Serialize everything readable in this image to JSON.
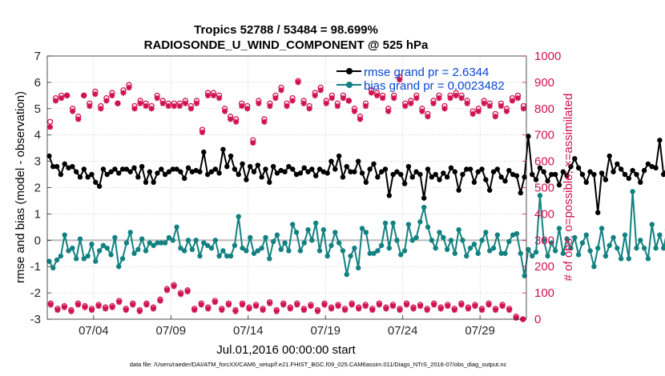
{
  "chart_data": {
    "type": "line",
    "title": "Tropics 52788 / 53484 = 98.699%",
    "subtitle": "RADIOSONDE_U_WIND_COMPONENT @ 525 hPa",
    "xlabel": "Jul.01,2016 00:00:00 start",
    "ylabel": "rmse and bias (model - observation)",
    "y2label": "# of obs: o=possible; ×=assimilated",
    "footnote": "data file: /Users/raeder/DAI/ATM_forcXX/CAM6_setup/f.e21.FHIST_BGC.f09_025.CAM6assim.011/Diags_NTrS_2016-07/obs_diag_output.nc",
    "xlim": [
      0,
      31
    ],
    "ylim": [
      -3,
      7
    ],
    "y2lim": [
      0,
      1000
    ],
    "grid": true,
    "legend_position": "top-right",
    "x_ticks": [
      {
        "value": 3,
        "label": "07/04"
      },
      {
        "value": 8,
        "label": "07/09"
      },
      {
        "value": 13,
        "label": "07/14"
      },
      {
        "value": 18,
        "label": "07/19"
      },
      {
        "value": 23,
        "label": "07/24"
      },
      {
        "value": 28,
        "label": "07/29"
      }
    ],
    "y_ticks": [
      -3,
      -2,
      -1,
      0,
      1,
      2,
      3,
      4,
      5,
      6,
      7
    ],
    "y2_ticks": [
      0,
      100,
      200,
      300,
      400,
      500,
      600,
      700,
      800,
      900,
      1000
    ],
    "colors": {
      "rmse": "#000000",
      "bias": "#138181",
      "obs": "#d0124f",
      "zero_line": "#bdbdbd",
      "legend_text": "#0a47d4"
    },
    "x_start": 0.125,
    "x_step": 0.25,
    "series": [
      {
        "name": "rmse grand pr = 2.6344",
        "axis": "left",
        "values": [
          3.2,
          2.8,
          2.8,
          2.5,
          2.9,
          2.75,
          2.8,
          2.6,
          2.4,
          2.7,
          2.4,
          2.5,
          2.2,
          2.05,
          2.7,
          2.5,
          2.6,
          2.7,
          2.55,
          2.7,
          2.7,
          2.6,
          2.75,
          2.4,
          2.8,
          2.2,
          2.6,
          2.2,
          2.55,
          2.7,
          2.5,
          2.6,
          2.7,
          2.7,
          2.6,
          2.35,
          2.75,
          2.6,
          2.65,
          2.6,
          3.35,
          2.5,
          2.6,
          2.7,
          2.55,
          3.45,
          2.8,
          3.2,
          2.7,
          2.5,
          2.9,
          2.3,
          2.8,
          2.6,
          2.85,
          2.4,
          2.7,
          2.2,
          2.8,
          2.55,
          2.65,
          2.6,
          2.8,
          2.7,
          2.5,
          2.55,
          2.75,
          2.6,
          2.7,
          2.45,
          2.7,
          2.6,
          2.55,
          3.0,
          2.7,
          3.2,
          2.4,
          2.8,
          2.6,
          2.6,
          3.0,
          2.55,
          2.2,
          2.7,
          2.9,
          2.4,
          2.6,
          2.7,
          1.7,
          2.5,
          2.6,
          2.5,
          2.15,
          2.8,
          2.4,
          2.6,
          2.5,
          1.6,
          2.7,
          2.4,
          2.5,
          2.3,
          2.55,
          2.4,
          2.75,
          2.6,
          1.9,
          2.5,
          2.7,
          2.7,
          2.2,
          2.6,
          2.7,
          2.3,
          1.9,
          2.6,
          2.7,
          2.4,
          2.25,
          2.65,
          2.5,
          2.45,
          1.8,
          2.4,
          3.95,
          2.5,
          2.3,
          2.75,
          2.6,
          2.25,
          2.5,
          2.5,
          2.1,
          2.6,
          2.45,
          2.8,
          3.1,
          2.75,
          2.5,
          2.2,
          2.6,
          2.5,
          1.05,
          2.55,
          2.3,
          3.2,
          2.6,
          2.9,
          2.7,
          2.5,
          2.35,
          2.65,
          2.5,
          2.2,
          2.65,
          2.9,
          2.8,
          2.75,
          3.8,
          2.5,
          2.8,
          3.15,
          2.6,
          2.55
        ]
      },
      {
        "name": "bias grand pr = 0.0023482",
        "axis": "left",
        "values": [
          -0.8,
          -1.05,
          -0.75,
          -0.6,
          0.2,
          -0.4,
          -0.3,
          -0.7,
          0.05,
          -0.7,
          -0.6,
          -0.15,
          -0.8,
          -0.4,
          -0.2,
          -0.3,
          -0.55,
          0.1,
          -1.0,
          -0.7,
          -0.1,
          0.3,
          -0.5,
          -0.35,
          0.05,
          -0.4,
          -0.1,
          -0.2,
          -0.1,
          -0.1,
          -0.1,
          0.1,
          0.0,
          0.5,
          -0.3,
          -0.4,
          0.0,
          -0.35,
          0.0,
          -0.6,
          -0.1,
          -0.2,
          -0.3,
          0.0,
          -0.6,
          -0.4,
          -0.6,
          -0.6,
          -0.2,
          0.9,
          -0.3,
          -0.4,
          0.1,
          -0.5,
          -0.4,
          -0.3,
          0.1,
          -0.7,
          -0.05,
          0.2,
          -0.35,
          -0.1,
          -0.4,
          0.6,
          0.3,
          -0.4,
          -0.1,
          0.4,
          0.0,
          0.65,
          -0.4,
          0.4,
          -0.6,
          -0.2,
          0.3,
          -0.1,
          -0.4,
          -1.3,
          -0.6,
          -0.3,
          -1.05,
          0.45,
          0.3,
          -0.5,
          -0.5,
          -0.4,
          -0.2,
          0.65,
          -0.3,
          0.65,
          0.0,
          -0.55,
          -0.4,
          0.6,
          0.0,
          0.1,
          0.7,
          1.25,
          0.5,
          0.0,
          -0.3,
          0.3,
          0.1,
          -0.35,
          0.0,
          -0.5,
          0.4,
          0.0,
          -0.6,
          -0.3,
          -0.15,
          -0.5,
          0.0,
          0.3,
          -0.4,
          -0.3,
          0.2,
          -0.5,
          -0.5,
          -0.05,
          0.2,
          0.25,
          -0.5,
          -1.35,
          -0.35,
          -0.6,
          -0.45,
          1.7,
          0.0,
          -0.6,
          -0.1,
          -0.4,
          0.45,
          -0.5,
          0.05,
          -0.3,
          0.1,
          -0.55,
          -0.1,
          0.2,
          -0.4,
          -1.0,
          -0.3,
          0.45,
          -0.6,
          -0.2,
          0.1,
          -0.3,
          -0.7,
          0.2,
          -0.7,
          1.85,
          -0.3,
          0.0,
          -0.3,
          -0.7,
          0.6,
          -0.3,
          0.2,
          -0.3,
          0.4,
          -0.1,
          0.0,
          -0.5
        ]
      },
      {
        "name": "obs possible",
        "axis": "right",
        "values": [
          750,
          840,
          850,
          850,
          800,
          770,
          850,
          820,
          865,
          810,
          840,
          860,
          820,
          870,
          890,
          810,
          830,
          820,
          810,
          850,
          830,
          820,
          820,
          820,
          830,
          810,
          830,
          720,
          860,
          860,
          850,
          800,
          770,
          760,
          820,
          810,
          680,
          830,
          760,
          820,
          850,
          880,
          820,
          840,
          905,
          830,
          810,
          860,
          880,
          830,
          850,
          820,
          850,
          830,
          800,
          770,
          820,
          870,
          860,
          850,
          800,
          850,
          920,
          820,
          830,
          850,
          800,
          780,
          830,
          850,
          810,
          850,
          860,
          850,
          830,
          790,
          800,
          830,
          820,
          780,
          820,
          800,
          840,
          850,
          810
        ]
      },
      {
        "name": "obs assimilated",
        "axis": "right",
        "values": [
          730,
          830,
          840,
          850,
          790,
          760,
          850,
          810,
          855,
          800,
          830,
          850,
          820,
          860,
          880,
          800,
          820,
          810,
          800,
          840,
          820,
          810,
          810,
          810,
          820,
          800,
          820,
          710,
          850,
          850,
          840,
          790,
          760,
          750,
          810,
          800,
          670,
          820,
          750,
          810,
          840,
          870,
          810,
          830,
          900,
          820,
          800,
          850,
          870,
          820,
          840,
          810,
          840,
          830,
          790,
          760,
          810,
          860,
          850,
          840,
          790,
          840,
          910,
          810,
          820,
          840,
          790,
          770,
          820,
          840,
          800,
          840,
          850,
          840,
          820,
          780,
          790,
          820,
          810,
          770,
          810,
          790,
          830,
          840,
          800
        ]
      },
      {
        "name": "obs low possible",
        "axis": "right",
        "values": [
          60,
          40,
          50,
          35,
          60,
          50,
          40,
          55,
          45,
          50,
          70,
          40,
          60,
          35,
          60,
          45,
          75,
          115,
          130,
          100,
          110,
          40,
          60,
          45,
          70,
          40,
          60,
          35,
          60,
          45,
          55,
          40,
          65,
          35,
          60,
          45,
          60,
          40,
          55,
          35,
          60,
          45,
          55,
          40,
          60,
          45,
          55,
          40,
          60,
          45,
          55,
          40,
          60,
          45,
          55,
          40,
          60,
          45,
          55,
          40,
          60,
          45,
          55,
          40,
          60,
          40,
          55,
          40,
          10,
          0
        ]
      },
      {
        "name": "obs low assimilated",
        "axis": "right",
        "values": [
          55,
          35,
          45,
          30,
          55,
          45,
          35,
          50,
          40,
          45,
          65,
          35,
          55,
          30,
          55,
          40,
          70,
          110,
          125,
          95,
          105,
          35,
          55,
          40,
          65,
          35,
          55,
          30,
          55,
          40,
          50,
          35,
          60,
          30,
          55,
          40,
          55,
          35,
          50,
          30,
          55,
          40,
          50,
          35,
          55,
          40,
          50,
          35,
          55,
          40,
          50,
          35,
          55,
          40,
          50,
          35,
          55,
          40,
          50,
          35,
          55,
          40,
          50,
          35,
          55,
          35,
          50,
          35,
          5,
          0
        ]
      }
    ]
  }
}
